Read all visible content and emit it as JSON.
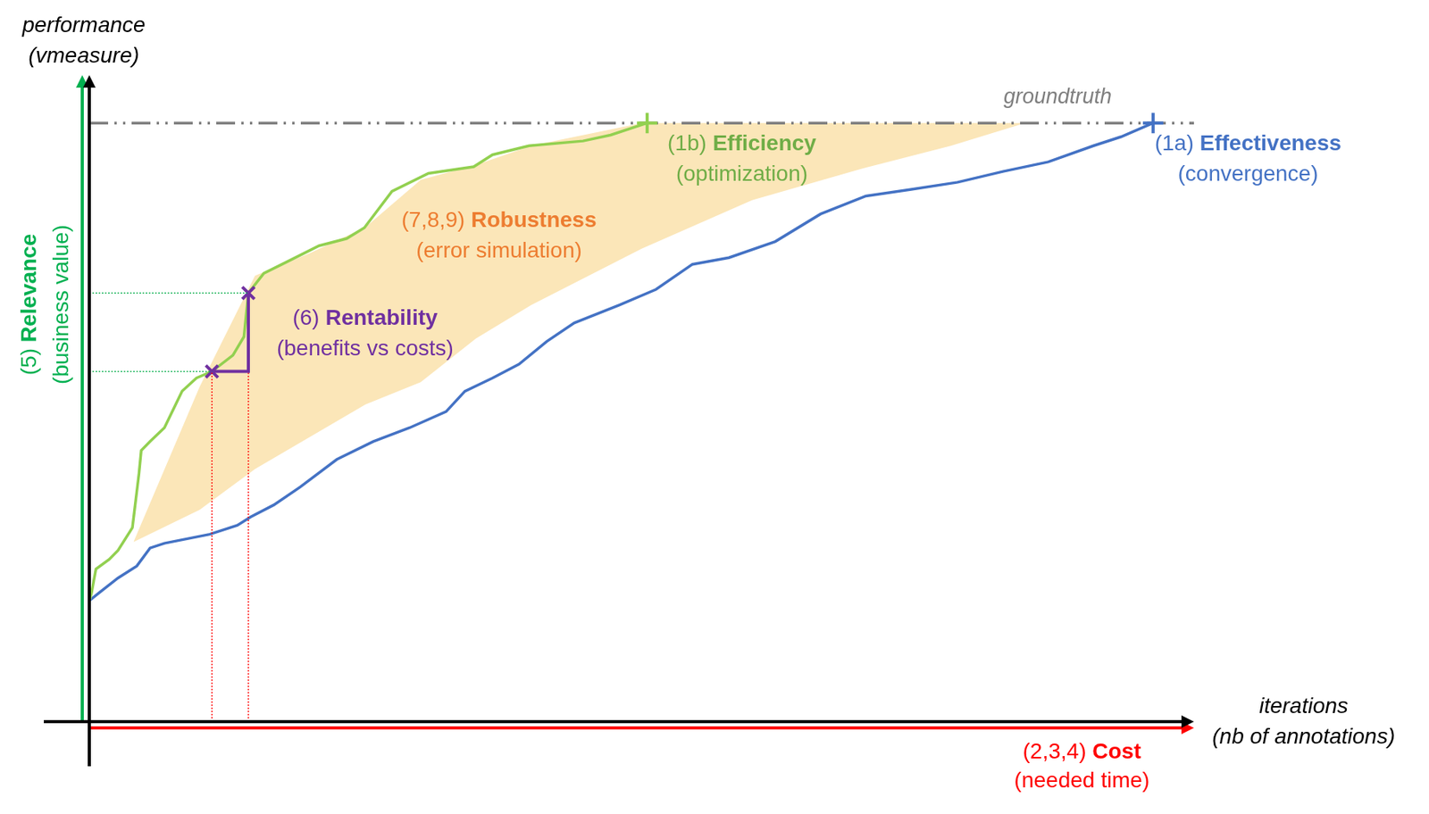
{
  "chart_data": {
    "type": "line",
    "x_label": [
      "iterations",
      "(nb of annotations)"
    ],
    "y_label": [
      "performance",
      "(vmeasure)"
    ],
    "xlim": [
      0,
      1000
    ],
    "ylim": [
      0,
      1.08
    ],
    "tick_labels": false,
    "grid": false,
    "series": [
      {
        "color": "#92d050",
        "marker": "cross",
        "x": [
          0,
          2,
          6,
          18,
          26,
          39,
          45,
          47,
          55,
          68,
          74,
          84,
          97,
          111,
          130,
          140,
          144,
          158,
          183,
          208,
          233,
          249,
          274,
          307,
          348,
          365,
          398,
          447,
          472,
          505
        ],
        "values": [
          0.202,
          0.215,
          0.255,
          0.271,
          0.286,
          0.324,
          0.415,
          0.453,
          0.468,
          0.491,
          0.514,
          0.552,
          0.574,
          0.585,
          0.612,
          0.643,
          0.716,
          0.749,
          0.772,
          0.795,
          0.807,
          0.825,
          0.886,
          0.916,
          0.927,
          0.947,
          0.962,
          0.97,
          0.98,
          1
        ]
      },
      {
        "color": "#4472c4",
        "marker": "cross",
        "x": [
          0,
          10,
          26,
          43,
          55,
          68,
          109,
          134,
          146,
          167,
          191,
          224,
          257,
          290,
          323,
          340,
          365,
          389,
          414,
          439,
          480,
          513,
          546,
          579,
          621,
          662,
          703,
          744,
          786,
          827,
          868,
          909,
          934,
          963
        ],
        "values": [
          0.202,
          0.217,
          0.24,
          0.26,
          0.29,
          0.298,
          0.313,
          0.328,
          0.342,
          0.362,
          0.392,
          0.438,
          0.468,
          0.491,
          0.518,
          0.552,
          0.574,
          0.597,
          0.635,
          0.666,
          0.696,
          0.722,
          0.764,
          0.775,
          0.802,
          0.848,
          0.878,
          0.889,
          0.901,
          0.919,
          0.935,
          0.962,
          0.977,
          1
        ]
      }
    ],
    "groundtruth": {
      "label": "groundtruth",
      "value": 1,
      "color": "#7f7f7f",
      "line_style": "dashdot"
    },
    "band": {
      "color": "#fbe6b8",
      "x": [
        40,
        100,
        150,
        200,
        250,
        300,
        350,
        400,
        500,
        600,
        700,
        780,
        847
      ],
      "lower": [
        0.3,
        0.354,
        0.422,
        0.476,
        0.53,
        0.567,
        0.64,
        0.696,
        0.79,
        0.871,
        0.924,
        0.962,
        1
      ],
      "upper": [
        0.3,
        0.56,
        0.745,
        0.783,
        0.826,
        0.905,
        0.93,
        0.962,
        1,
        1,
        1,
        1,
        1
      ]
    },
    "rentability": {
      "color": "#7030a0",
      "marker": "x",
      "x": [
        111,
        144
      ],
      "values": [
        0.585,
        0.716
      ]
    },
    "annotations": [
      {
        "number": "(1b)",
        "title": "Efficiency",
        "subtitle": "(optimization)",
        "color": "#70ad47"
      },
      {
        "number": "(1a)",
        "title": "Effectiveness",
        "subtitle": "(convergence)",
        "color": "#4472c4"
      },
      {
        "number": "(7,8,9)",
        "title": "Robustness",
        "subtitle": "(error simulation)",
        "color": "#ed7d31"
      },
      {
        "number": "(6)",
        "title": "Rentability",
        "subtitle": "(benefits vs costs)",
        "color": "#7030a0"
      },
      {
        "number": "(5)",
        "title": "Relevance",
        "subtitle": "(business value)",
        "color": "#00b050"
      },
      {
        "number": "(2,3,4)",
        "title": "Cost",
        "subtitle": "(needed time)",
        "color": "#ff0000"
      }
    ]
  }
}
